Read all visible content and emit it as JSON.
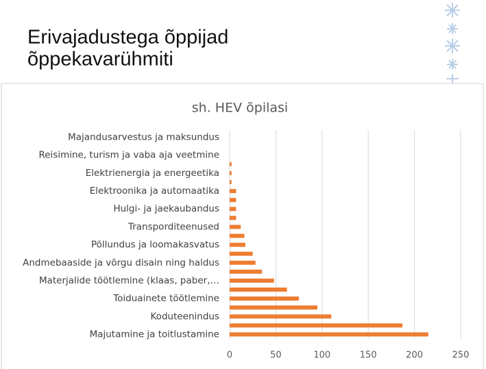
{
  "slide_title": [
    "Erivajadustega õppijad",
    "õppekavarühmiti"
  ],
  "chart_data": {
    "type": "hbar",
    "title": "sh. HEV õpilasi",
    "categories": [
      "Majandusarvestus ja maksundus",
      null,
      "Reisimine, turism ja vaba aja veetmine",
      null,
      "Elektrienergia ja energeetika",
      null,
      "Elektroonika ja automaatika",
      null,
      "Hulgi- ja jaekaubandus",
      null,
      "Transporditeenused",
      null,
      "Põllundus ja loomakasvatus",
      null,
      "Andmebaaside ja võrgu disain ning haldus",
      null,
      "Materjalide töötlemine (klaas, paber,…",
      null,
      "Toiduainete töötlemine",
      null,
      "Koduteenindus",
      null,
      "Majutamine ja toitlustamine"
    ],
    "values": [
      0,
      0,
      0,
      2,
      2,
      2,
      7,
      7,
      7,
      7,
      12,
      16,
      17,
      25,
      28,
      35,
      48,
      62,
      75,
      95,
      110,
      187,
      215
    ],
    "color": "#ed7d31",
    "xlim": [
      0,
      250
    ],
    "xticks": [
      0,
      50,
      100,
      150,
      200,
      250
    ],
    "grid": true
  }
}
